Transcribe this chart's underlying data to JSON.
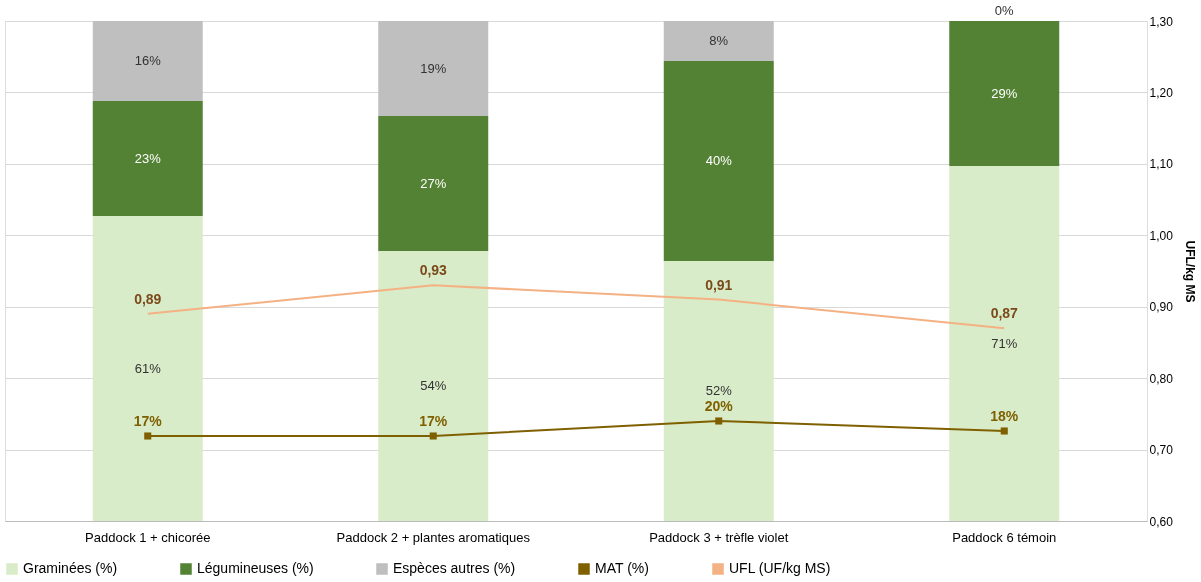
{
  "chart_data": {
    "type": "bar",
    "stacked": true,
    "categories": [
      "Paddock 1 + chicorée",
      "Paddock 2 + plantes aromatiques",
      "Paddock 3 + trèfle violet",
      "Paddock 6 témoin"
    ],
    "series": [
      {
        "name": "Graminées (%)",
        "color": "#d9ecc9",
        "values": [
          61,
          54,
          52,
          71
        ],
        "value_labels": [
          "61%",
          "54%",
          "52%",
          "71%"
        ]
      },
      {
        "name": "Légumineuses (%)",
        "color": "#548235",
        "values": [
          23,
          27,
          40,
          29
        ],
        "value_labels": [
          "23%",
          "27%",
          "40%",
          "29%"
        ]
      },
      {
        "name": "Espèces autres (%)",
        "color": "#bfbfbf",
        "values": [
          16,
          19,
          8,
          0
        ],
        "value_labels": [
          "16%",
          "19%",
          "8%",
          "0%"
        ]
      },
      {
        "name": "MAT (%)",
        "type": "line",
        "color": "#7f6000",
        "marker": "square",
        "values": [
          17,
          17,
          20,
          18
        ],
        "value_labels": [
          "17%",
          "17%",
          "20%",
          "18%"
        ]
      },
      {
        "name": "UFL (UF/kg MS)",
        "type": "line",
        "axis": "y2",
        "color": "#f4b183",
        "marker": "none",
        "values": [
          0.89,
          0.93,
          0.91,
          0.87
        ],
        "value_labels": [
          "0,89",
          "0,93",
          "0,91",
          "0,87"
        ]
      }
    ],
    "ylim": [
      0,
      100
    ],
    "y2lim": [
      0.6,
      1.3
    ],
    "y2ticks": [
      {
        "value": 0.6,
        "label": "0,60"
      },
      {
        "value": 0.7,
        "label": "0,70"
      },
      {
        "value": 0.8,
        "label": "0,80"
      },
      {
        "value": 0.9,
        "label": "0,90"
      },
      {
        "value": 1.0,
        "label": "1,00"
      },
      {
        "value": 1.1,
        "label": "1,10"
      },
      {
        "value": 1.2,
        "label": "1,20"
      },
      {
        "value": 1.3,
        "label": "1,30"
      }
    ],
    "y2label": "UFL/kg MS",
    "tick_labels": "x",
    "grid": "y",
    "legend": "bottom",
    "line_style": "solid"
  }
}
